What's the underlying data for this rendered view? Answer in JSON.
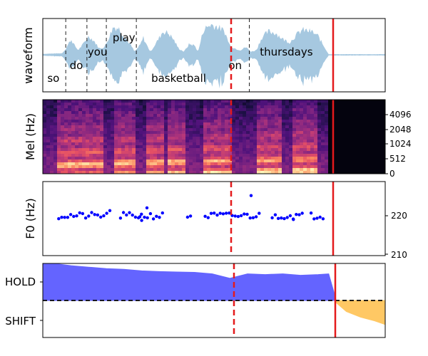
{
  "chart_data": [
    {
      "type": "line",
      "ylabel": "waveform",
      "words": [
        {
          "text": "so",
          "time": 0.3,
          "row": "low"
        },
        {
          "text": "do",
          "time": 0.95,
          "row": "mid"
        },
        {
          "text": "you",
          "time": 1.55,
          "row": "high"
        },
        {
          "text": "play",
          "time": 2.3,
          "row": "top"
        },
        {
          "text": "basketball",
          "time": 3.85,
          "row": "low"
        },
        {
          "text": "on",
          "time": 5.45,
          "row": "mid"
        },
        {
          "text": "thursdays",
          "time": 6.9,
          "row": "high"
        }
      ],
      "word_boundaries": [
        0.65,
        1.25,
        1.8,
        2.65,
        5.85
      ],
      "red_dashed_time": 5.3,
      "red_solid_time": 8.1,
      "xlim": [
        0,
        9.7
      ],
      "ylim": [
        -1,
        1
      ],
      "fill_color": "#a6c8e0"
    },
    {
      "type": "heatmap",
      "ylabel": "Mel (Hz)",
      "yticks": [
        "0",
        "512",
        "1024",
        "2048",
        "4096"
      ],
      "speech_segments": [
        [
          0.45,
          1.1
        ],
        [
          1.1,
          1.75
        ],
        [
          2.0,
          2.65
        ],
        [
          2.9,
          3.45
        ],
        [
          3.5,
          4.05
        ],
        [
          4.5,
          5.4
        ],
        [
          6.1,
          6.8
        ],
        [
          7.1,
          7.8
        ]
      ],
      "red_dashed_time": 5.3,
      "red_solid_time": 8.1,
      "xlim": [
        0,
        9.7
      ],
      "colormap": "magma"
    },
    {
      "type": "scatter",
      "ylabel": "F0 (Hz)",
      "yticks": [
        "210",
        "220"
      ],
      "ylim": [
        209.8,
        225.6
      ],
      "point_color": "#0000ff",
      "segments": [
        [
          0.45,
          1.85
        ],
        [
          2.2,
          3.4
        ],
        [
          4.1,
          4.25
        ],
        [
          4.6,
          6.2
        ],
        [
          6.5,
          7.35
        ],
        [
          7.6,
          7.95
        ]
      ],
      "outliers": [
        {
          "x": 1.9,
          "y": 219.4
        },
        {
          "x": 2.75,
          "y": 218.1
        },
        {
          "x": 2.95,
          "y": 220.0
        },
        {
          "x": 2.8,
          "y": 217.3
        },
        {
          "x": 5.9,
          "y": 222.6
        },
        {
          "x": 7.1,
          "y": 217.5
        }
      ],
      "red_dashed_time": 5.3,
      "red_solid_time": 8.1,
      "xlim": [
        0,
        9.7
      ]
    },
    {
      "type": "area",
      "yticks": [
        "HOLD",
        "SHIFT"
      ],
      "threshold": 0,
      "ylim": [
        -1.0,
        1.0
      ],
      "series": [
        {
          "color": "#6464ff",
          "x": [
            0,
            0.3,
            0.8,
            1.3,
            1.8,
            2.3,
            2.8,
            3.3,
            3.8,
            4.3,
            4.8,
            5.3,
            5.8,
            6.3,
            6.8,
            7.3,
            7.8,
            8.1,
            8.3
          ],
          "values": [
            0.98,
            1.0,
            0.94,
            0.9,
            0.86,
            0.84,
            0.8,
            0.78,
            0.77,
            0.76,
            0.72,
            0.6,
            0.72,
            0.7,
            0.72,
            0.68,
            0.7,
            0.72,
            0.05
          ]
        },
        {
          "color": "#ffc864",
          "x": [
            8.3,
            8.6,
            9.0,
            9.4,
            9.7
          ],
          "values": [
            -0.05,
            -0.3,
            -0.45,
            -0.55,
            -0.65
          ]
        }
      ],
      "red_dashed_time": 5.3,
      "red_solid_time": 8.1,
      "xlim": [
        0,
        9.7
      ]
    }
  ]
}
